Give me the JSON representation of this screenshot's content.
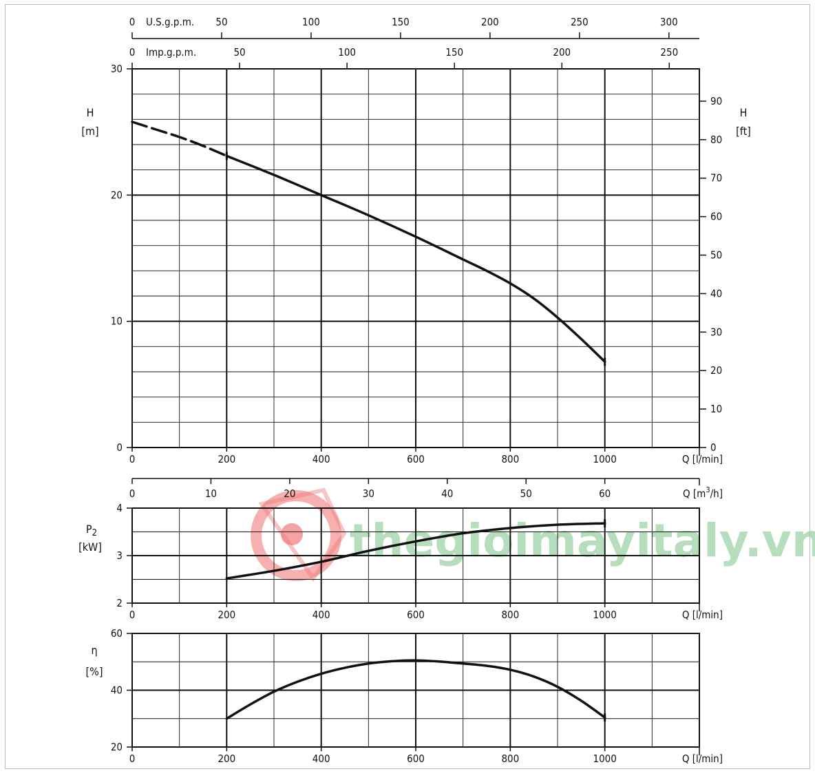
{
  "watermark": {
    "text": "thegioimayitaly.vn",
    "color": "#9fd3a6",
    "logo_color": "#f07b7b"
  },
  "chart_data": [
    {
      "id": "head",
      "type": "line",
      "x_label": "Q [l/min]",
      "xlim": [
        0,
        1200
      ],
      "x_ticks": [
        0,
        200,
        400,
        600,
        800,
        1000
      ],
      "y_label_symbol": "H",
      "y_label_unit": "[m]",
      "ylim": [
        0,
        30
      ],
      "y_ticks": [
        0,
        10,
        20,
        30
      ],
      "grid": true,
      "series": [
        {
          "style": "dashed",
          "x": [
            0,
            50,
            100,
            150,
            200
          ],
          "y": [
            25.8,
            25.2,
            24.6,
            23.9,
            23.1
          ]
        },
        {
          "style": "solid",
          "x": [
            200,
            300,
            400,
            500,
            600,
            700,
            750,
            800,
            850,
            900,
            950,
            1000
          ],
          "y": [
            23.1,
            21.6,
            20.0,
            18.4,
            16.7,
            14.9,
            14.0,
            13.0,
            11.8,
            10.3,
            8.6,
            6.8
          ]
        }
      ],
      "right_axis": {
        "label_symbol": "H",
        "label_unit": "[ft]",
        "range": [
          0,
          98.4
        ],
        "ticks": [
          0,
          10,
          20,
          30,
          40,
          50,
          60,
          70,
          80,
          90
        ]
      },
      "top_axes": [
        {
          "label": "U.S.g.p.m.",
          "range": [
            0,
            317
          ],
          "ticks": [
            0,
            50,
            100,
            150,
            200,
            250,
            300
          ]
        },
        {
          "label": "Imp.g.p.m.",
          "range": [
            0,
            264
          ],
          "ticks": [
            0,
            50,
            100,
            150,
            200,
            250
          ]
        }
      ],
      "secondary_x_axis": {
        "label": "Q [m3/h]",
        "unit_prefix": "Q [m",
        "unit_sup": "3",
        "unit_suffix": "/h]",
        "range": [
          0,
          72
        ],
        "ticks": [
          0,
          10,
          20,
          30,
          40,
          50,
          60
        ]
      }
    },
    {
      "id": "power",
      "type": "line",
      "x_label": "Q [l/min]",
      "xlim": [
        0,
        1200
      ],
      "x_ticks": [
        0,
        200,
        400,
        600,
        800,
        1000
      ],
      "y_label_symbol": "P",
      "y_label_sub": "2",
      "y_label_unit": "[kW]",
      "ylim": [
        2,
        4
      ],
      "y_ticks": [
        2,
        3,
        4
      ],
      "grid": true,
      "series": [
        {
          "style": "solid",
          "x": [
            200,
            300,
            400,
            500,
            600,
            700,
            800,
            900,
            1000
          ],
          "y": [
            2.52,
            2.68,
            2.87,
            3.1,
            3.3,
            3.47,
            3.58,
            3.65,
            3.68
          ]
        }
      ]
    },
    {
      "id": "efficiency",
      "type": "line",
      "x_label": "Q [l/min]",
      "xlim": [
        0,
        1200
      ],
      "x_ticks": [
        0,
        200,
        400,
        600,
        800,
        1000
      ],
      "y_label_symbol": "η",
      "y_label_unit": "[%]",
      "ylim": [
        20,
        60
      ],
      "y_ticks": [
        20,
        40,
        60
      ],
      "grid": true,
      "series": [
        {
          "style": "solid",
          "x": [
            200,
            250,
            300,
            350,
            400,
            450,
            500,
            550,
            600,
            650,
            700,
            750,
            800,
            850,
            900,
            950,
            1000
          ],
          "y": [
            30.0,
            35.0,
            39.5,
            43.0,
            45.8,
            47.9,
            49.4,
            50.2,
            50.5,
            50.1,
            49.4,
            48.6,
            47.2,
            44.8,
            41.2,
            36.3,
            30.4
          ]
        }
      ]
    }
  ]
}
